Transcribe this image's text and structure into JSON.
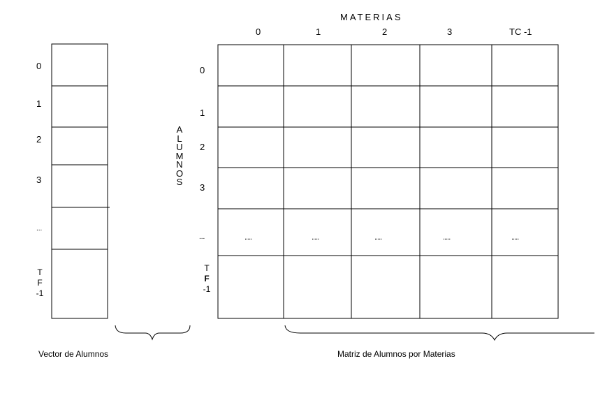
{
  "matrix": {
    "header_title": "MATERIAS",
    "column_labels": [
      "0",
      "1",
      "2",
      "3",
      "TC -1"
    ],
    "row_labels": [
      "0",
      "1",
      "2",
      "3",
      "..."
    ],
    "last_row_label": [
      "T",
      "F",
      "-1"
    ],
    "side_label": [
      "A",
      "L",
      "U",
      "M",
      "N",
      "O",
      "S"
    ],
    "ellipsis_cells": [
      ".....",
      ".....",
      ".....",
      ".....",
      "....."
    ],
    "caption": "Matriz de Alumnos por Materias"
  },
  "vector": {
    "row_labels": [
      "0",
      "1",
      "2",
      "3",
      "..."
    ],
    "last_row_label": [
      "T",
      "F",
      "-1"
    ],
    "caption": "Vector de Alumnos"
  }
}
